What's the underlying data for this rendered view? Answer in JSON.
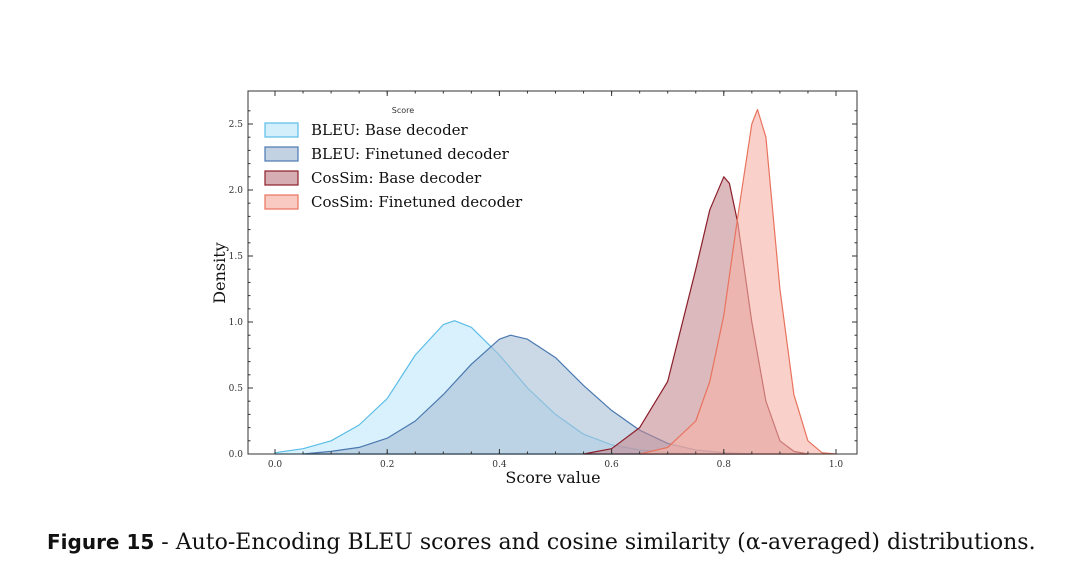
{
  "chart_data": {
    "type": "area",
    "xlabel": "Score value",
    "ylabel": "Density",
    "xlim": [
      -0.05,
      1.04
    ],
    "ylim": [
      0,
      2.75
    ],
    "xticks": [
      "0.0",
      "0.2",
      "0.4",
      "0.6",
      "0.8",
      "1.0"
    ],
    "yticks": [
      "0.0",
      "0.5",
      "1.0",
      "1.5",
      "2.0",
      "2.5"
    ],
    "grid": false,
    "legend": {
      "title": "Score",
      "placement": "top-left"
    },
    "series": [
      {
        "name": "BLEU: Base decoder",
        "edge": "#5bbde8",
        "fill": "#bfe8fa",
        "x": [
          0.0,
          0.05,
          0.1,
          0.15,
          0.2,
          0.25,
          0.3,
          0.32,
          0.35,
          0.4,
          0.45,
          0.5,
          0.55,
          0.6,
          0.65,
          0.7,
          0.75
        ],
        "y": [
          0.01,
          0.04,
          0.1,
          0.22,
          0.42,
          0.75,
          0.98,
          1.01,
          0.96,
          0.75,
          0.5,
          0.3,
          0.15,
          0.07,
          0.03,
          0.01,
          0
        ]
      },
      {
        "name": "BLEU: Finetuned decoder",
        "edge": "#4a78b0",
        "fill": "#a9bfd6",
        "x": [
          0.05,
          0.1,
          0.15,
          0.2,
          0.25,
          0.3,
          0.35,
          0.4,
          0.42,
          0.45,
          0.5,
          0.55,
          0.6,
          0.65,
          0.7,
          0.75,
          0.8,
          0.85
        ],
        "y": [
          0,
          0.02,
          0.05,
          0.12,
          0.25,
          0.45,
          0.68,
          0.87,
          0.9,
          0.87,
          0.73,
          0.52,
          0.33,
          0.18,
          0.08,
          0.03,
          0.01,
          0
        ]
      },
      {
        "name": "CosSim: Base decoder",
        "edge": "#8b1e2a",
        "fill": "#c48a91",
        "x": [
          0.55,
          0.6,
          0.65,
          0.7,
          0.75,
          0.775,
          0.8,
          0.81,
          0.825,
          0.85,
          0.875,
          0.9,
          0.925,
          0.95
        ],
        "y": [
          0,
          0.04,
          0.2,
          0.55,
          1.4,
          1.85,
          2.1,
          2.05,
          1.75,
          1.0,
          0.4,
          0.1,
          0.02,
          0
        ]
      },
      {
        "name": "CosSim: Finetuned decoder",
        "edge": "#e8735e",
        "fill": "#f6b3a6",
        "x": [
          0.65,
          0.7,
          0.75,
          0.775,
          0.8,
          0.825,
          0.85,
          0.86,
          0.875,
          0.9,
          0.925,
          0.95,
          0.975,
          1.0
        ],
        "y": [
          0,
          0.05,
          0.25,
          0.55,
          1.05,
          1.8,
          2.5,
          2.61,
          2.4,
          1.25,
          0.45,
          0.1,
          0.01,
          0
        ]
      }
    ]
  },
  "caption": {
    "label": "Figure 15",
    "text": " - Auto-Encoding BLEU scores and cosine similarity (α-averaged) distributions."
  }
}
